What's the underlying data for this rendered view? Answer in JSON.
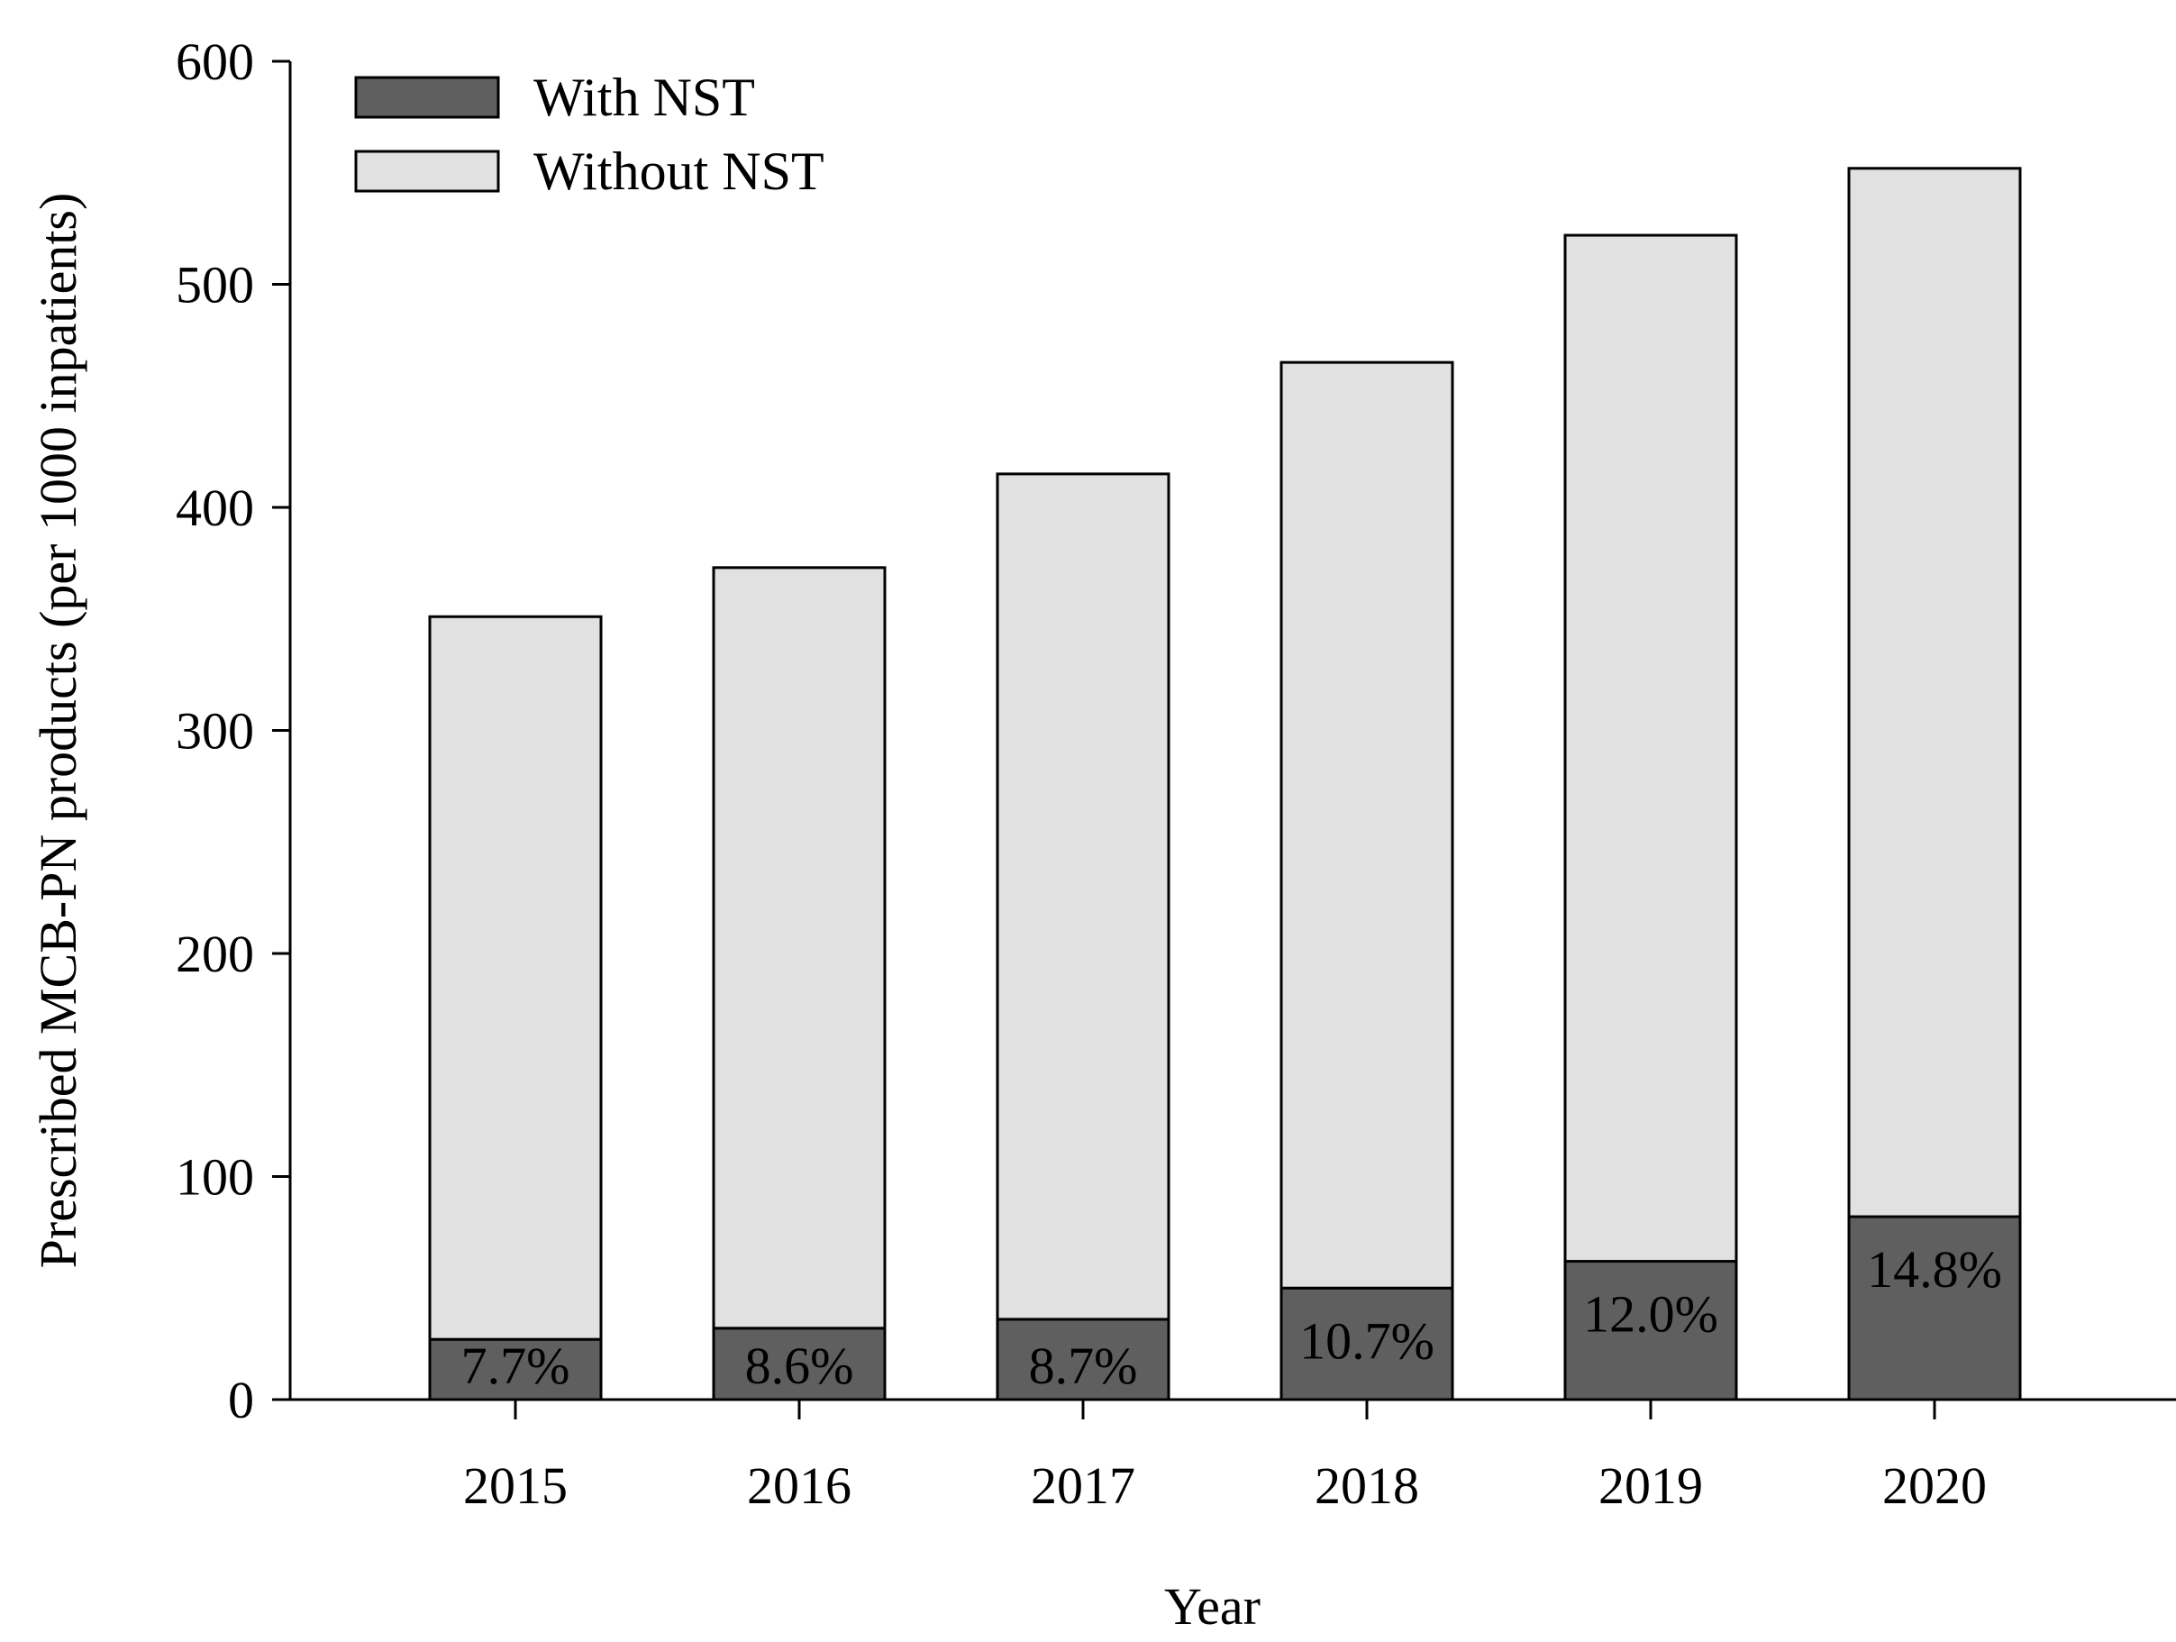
{
  "chart_data": {
    "type": "bar",
    "stacked": true,
    "categories": [
      "2015",
      "2016",
      "2017",
      "2018",
      "2019",
      "2020"
    ],
    "series": [
      {
        "name": "With NST",
        "values": [
          27,
          32,
          36,
          50,
          62,
          82
        ],
        "color": "#5f5f5f"
      },
      {
        "name": "Without NST",
        "values": [
          324,
          341,
          379,
          415,
          460,
          470
        ],
        "color": "#e1e1e1"
      }
    ],
    "totals": [
      351,
      373,
      415,
      465,
      522,
      552
    ],
    "data_labels": [
      "7.7%",
      "8.6%",
      "8.7%",
      "10.7%",
      "12.0%",
      "14.8%"
    ],
    "title": "",
    "xlabel": "Year",
    "ylabel": "Prescribed MCB-PN products (per 1000 inpatients)",
    "ylim": [
      0,
      600
    ],
    "yticks": [
      0,
      100,
      200,
      300,
      400,
      500,
      600
    ],
    "grid": false,
    "legend_position": "top-left"
  }
}
